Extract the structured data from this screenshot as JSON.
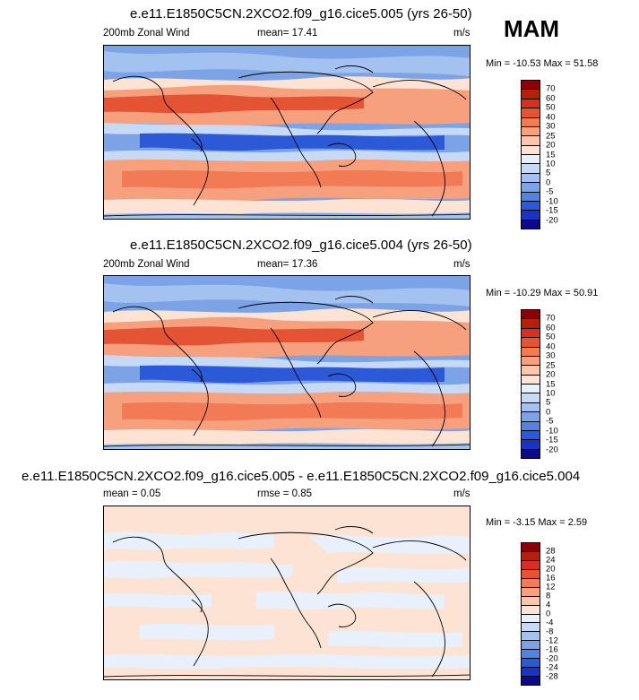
{
  "season": "MAM",
  "chart_data": [
    {
      "type": "heatmap",
      "title": "e.e11.E1850C5CN.2XCO2.f09_g16.cice5.005 (yrs 26-50)",
      "left_label": "200mb Zonal Wind",
      "center_label": "mean=  17.41",
      "right_label": "m/s",
      "min_max": "Min = -10.53 Max =  51.58",
      "colorbar_levels": [
        "70",
        "60",
        "50",
        "40",
        "30",
        "25",
        "20",
        "15",
        "10",
        "5",
        "0",
        "-5",
        "-10",
        "-15",
        "-20"
      ],
      "colors": [
        "#8b0000",
        "#b5200c",
        "#d7301f",
        "#e55335",
        "#f27a55",
        "#f6a07e",
        "#fbc6ac",
        "#fde3d3",
        "#e8f0fc",
        "#c6daf6",
        "#a3c2ef",
        "#7ba3e6",
        "#5282e4",
        "#2c59d8",
        "#1835c2",
        "#0a0a8a"
      ]
    },
    {
      "type": "heatmap",
      "title": "e.e11.E1850C5CN.2XCO2.f09_g16.cice5.004 (yrs 26-50)",
      "left_label": "200mb Zonal Wind",
      "center_label": "mean=  17.36",
      "right_label": "m/s",
      "min_max": "Min = -10.29 Max =  50.91",
      "colorbar_levels": [
        "70",
        "60",
        "50",
        "40",
        "30",
        "25",
        "20",
        "15",
        "10",
        "5",
        "0",
        "-5",
        "-10",
        "-15",
        "-20"
      ],
      "colors": [
        "#8b0000",
        "#b5200c",
        "#d7301f",
        "#e55335",
        "#f27a55",
        "#f6a07e",
        "#fbc6ac",
        "#fde3d3",
        "#e8f0fc",
        "#c6daf6",
        "#a3c2ef",
        "#7ba3e6",
        "#5282e4",
        "#2c59d8",
        "#1835c2",
        "#0a0a8a"
      ]
    },
    {
      "type": "heatmap",
      "title": "e.e11.E1850C5CN.2XCO2.f09_g16.cice5.005 - e.e11.E1850C5CN.2XCO2.f09_g16.cice5.004",
      "left_label": "mean =   0.05",
      "center_label": "rmse =   0.85",
      "right_label": "m/s",
      "min_max": "Min =  -3.15 Max =   2.59",
      "colorbar_levels": [
        "28",
        "24",
        "20",
        "16",
        "12",
        "8",
        "4",
        "0",
        "-4",
        "-8",
        "-12",
        "-16",
        "-20",
        "-24",
        "-28"
      ],
      "colors": [
        "#8b0000",
        "#b5200c",
        "#d7301f",
        "#e55335",
        "#f27a55",
        "#f6a07e",
        "#fbc6ac",
        "#fde3d3",
        "#e8f0fc",
        "#c6daf6",
        "#a3c2ef",
        "#7ba3e6",
        "#5282e4",
        "#2c59d8",
        "#1835c2",
        "#0a0a8a"
      ]
    }
  ]
}
